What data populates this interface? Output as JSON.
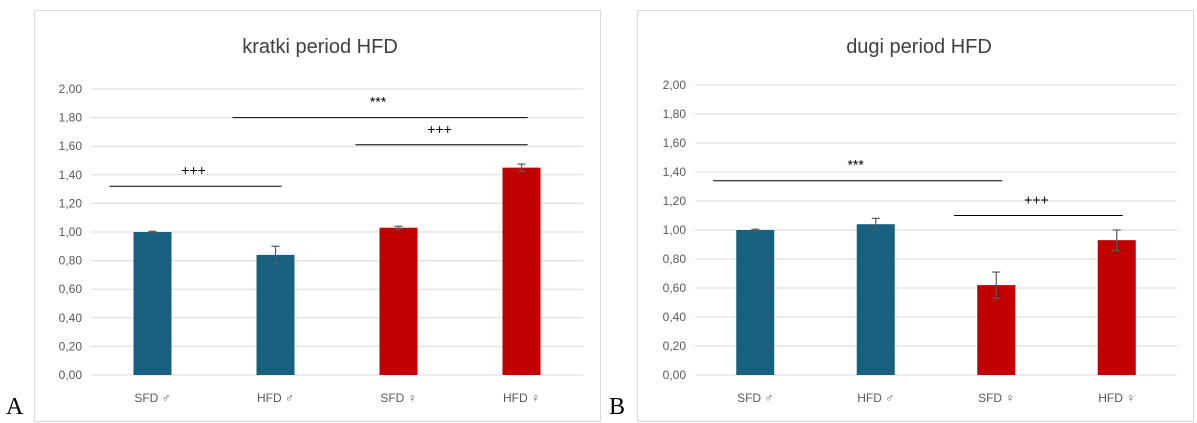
{
  "panel_labels": {
    "a": "A",
    "b": "B"
  },
  "colors": {
    "male": "#17607f",
    "female": "#c00000",
    "grid": "#d9d9d9",
    "error": "#595959",
    "line": "#000000"
  },
  "chart_data": [
    {
      "type": "bar",
      "title": "kratki period HFD",
      "categories": [
        "SFD ♂",
        "HFD ♂",
        "SFD ♀",
        "HFD ♀"
      ],
      "values": [
        1.0,
        0.84,
        1.03,
        1.45
      ],
      "errors": [
        0.005,
        0.06,
        0.01,
        0.025
      ],
      "bar_colors": [
        "#17607f",
        "#17607f",
        "#c00000",
        "#c00000"
      ],
      "ylim": [
        0,
        2.0
      ],
      "yticks": [
        "0,00",
        "0,20",
        "0,40",
        "0,60",
        "0,80",
        "1,00",
        "1,20",
        "1,40",
        "1,60",
        "1,80",
        "2,00"
      ],
      "grid": true,
      "annotations": [
        {
          "text": "+++",
          "from_category": 0,
          "to_category": 1,
          "y": 1.32
        },
        {
          "text": "***",
          "from_category": 1,
          "to_category": 3,
          "y": 1.8
        },
        {
          "text": "+++",
          "from_category": 2,
          "to_category": 3,
          "y": 1.61
        }
      ]
    },
    {
      "type": "bar",
      "title": "dugi period HFD",
      "categories": [
        "SFD ♂",
        "HFD ♂",
        "SFD ♀",
        "HFD ♀"
      ],
      "values": [
        1.0,
        1.04,
        0.62,
        0.93
      ],
      "errors": [
        0.005,
        0.04,
        0.09,
        0.07
      ],
      "bar_colors": [
        "#17607f",
        "#17607f",
        "#c00000",
        "#c00000"
      ],
      "ylim": [
        0,
        2.0
      ],
      "yticks": [
        "0,00",
        "0,20",
        "0,40",
        "0,60",
        "0,80",
        "1,00",
        "1,20",
        "1,40",
        "1,60",
        "1,80",
        "2,00"
      ],
      "grid": true,
      "annotations": [
        {
          "text": "***",
          "from_category": 0,
          "to_category": 2,
          "y": 1.34
        },
        {
          "text": "+++",
          "from_category": 2,
          "to_category": 3,
          "y": 1.1
        }
      ]
    }
  ]
}
